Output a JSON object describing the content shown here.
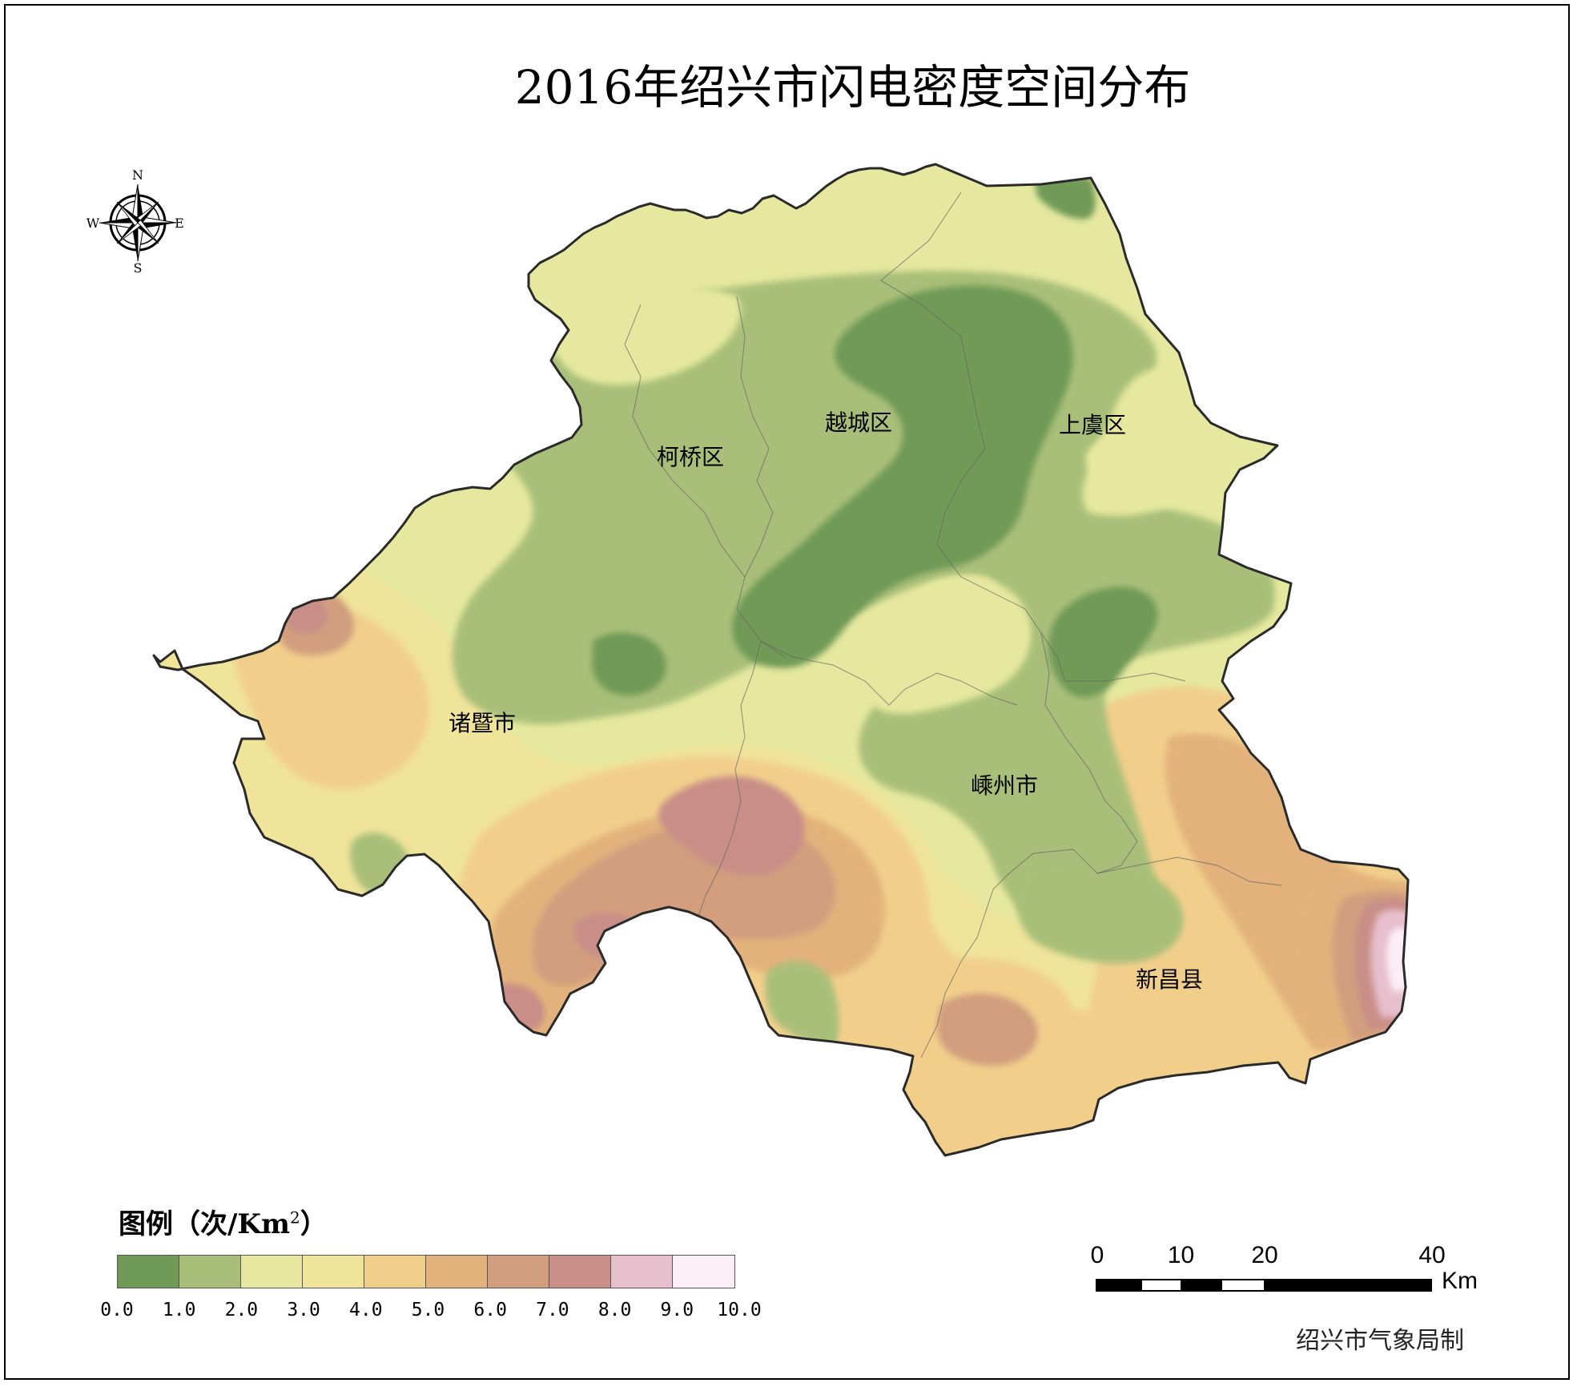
{
  "title": "2016年绍兴市闪电密度空间分布",
  "compass": {
    "north": "N",
    "south": "S",
    "east": "E",
    "west": "W"
  },
  "districts": [
    {
      "id": "keqiao",
      "name": "柯桥区"
    },
    {
      "id": "yuecheng",
      "name": "越城区"
    },
    {
      "id": "shangyu",
      "name": "上虞区"
    },
    {
      "id": "zhuji",
      "name": "诸暨市"
    },
    {
      "id": "shengzhou",
      "name": "嵊州市"
    },
    {
      "id": "xinchang",
      "name": "新昌县"
    }
  ],
  "legend": {
    "title": "图例（次/Km",
    "title_sup": "2",
    "title_close": "）",
    "colors": [
      "#6f9a56",
      "#a9bf79",
      "#e5e89e",
      "#f0e39a",
      "#f1cf8b",
      "#e3b27c",
      "#d29e7e",
      "#c98e87",
      "#e7bfcd",
      "#fbeef6"
    ],
    "ticks": [
      "0.0",
      "1.0",
      "2.0",
      "3.0",
      "4.0",
      "5.0",
      "6.0",
      "7.0",
      "8.0",
      "9.0",
      "10.0"
    ]
  },
  "scale_bar": {
    "labels": [
      "0",
      "10",
      "20",
      "40"
    ],
    "unit": "Km"
  },
  "credit": "绍兴市气象局制"
}
